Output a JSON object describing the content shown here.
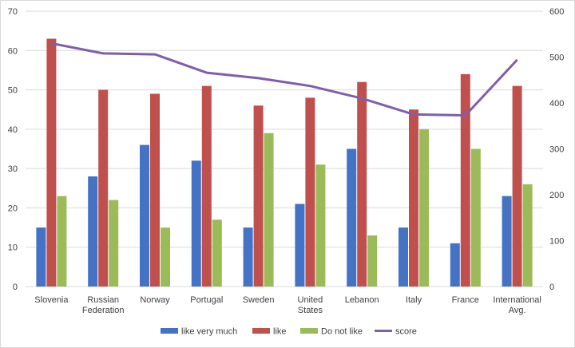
{
  "chart_data": {
    "type": "bar",
    "categories": [
      [
        "Slovenia"
      ],
      [
        "Russian",
        "Federation"
      ],
      [
        "Norway"
      ],
      [
        "Portugal"
      ],
      [
        "Sweden"
      ],
      [
        "United",
        "States"
      ],
      [
        "Lebanon"
      ],
      [
        "Italy"
      ],
      [
        "France"
      ],
      [
        "International",
        "Avg."
      ]
    ],
    "series": [
      {
        "name": "like very much",
        "type": "bar",
        "axis": "left",
        "color": "#4472c4",
        "values": [
          15,
          28,
          36,
          32,
          15,
          21,
          35,
          15,
          11,
          23
        ]
      },
      {
        "name": "like",
        "type": "bar",
        "axis": "left",
        "color": "#c0504d",
        "values": [
          63,
          50,
          49,
          51,
          46,
          48,
          52,
          45,
          54,
          51
        ]
      },
      {
        "name": "Do not like",
        "type": "bar",
        "axis": "left",
        "color": "#9bbb59",
        "values": [
          23,
          22,
          15,
          17,
          39,
          31,
          13,
          40,
          35,
          26
        ]
      },
      {
        "name": "score",
        "type": "line",
        "axis": "right",
        "color": "#7f5fa8",
        "values": [
          530,
          508,
          506,
          466,
          454,
          437,
          410,
          375,
          373,
          494
        ]
      }
    ],
    "y_left": {
      "min": 0,
      "max": 70,
      "step": 10,
      "ticks": [
        "0",
        "10",
        "20",
        "30",
        "40",
        "50",
        "60",
        "70"
      ]
    },
    "y_right": {
      "min": 0,
      "max": 600,
      "step": 100,
      "ticks": [
        "0",
        "100",
        "200",
        "300",
        "400",
        "500",
        "600"
      ]
    },
    "grid": true,
    "legend": "bottom"
  }
}
